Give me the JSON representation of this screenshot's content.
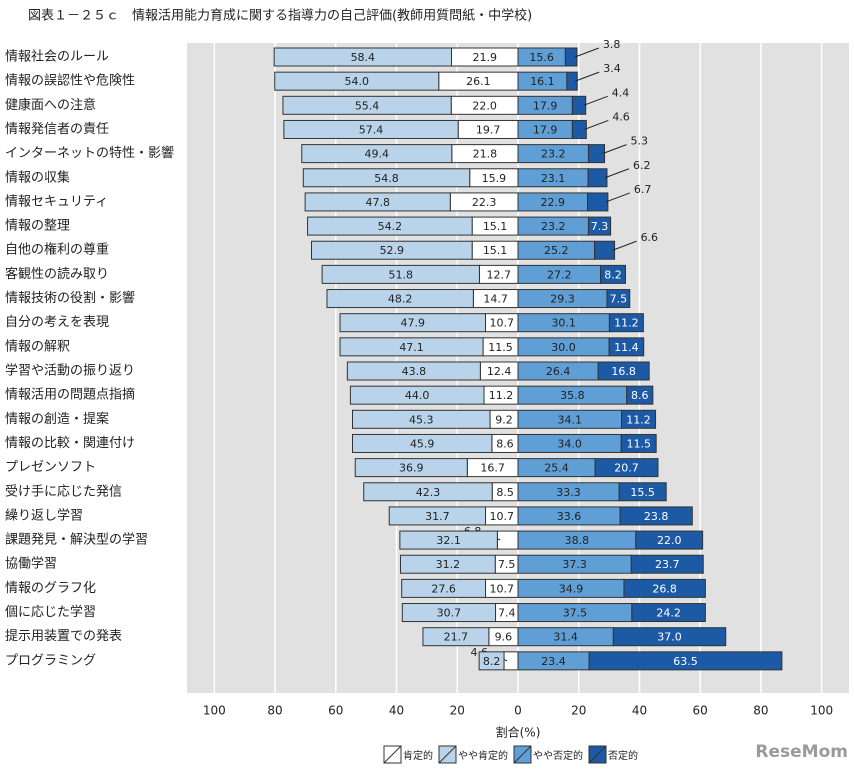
{
  "chart_data": {
    "type": "diverging-stacked-bar",
    "title": "図表１－２５ｃ　情報活用能力育成に関する指導力の自己評価(教師用質問紙・中学校)",
    "x_label": "割合(%)",
    "watermark": "ReseMom",
    "categories": [
      "情報社会のルール",
      "情報の誤認性や危険性",
      "健康面への注意",
      "情報発信者の責任",
      "インターネットの特性・影響",
      "情報の収集",
      "情報セキュリティ",
      "情報の整理",
      "自他の権利の尊重",
      "客観性の読み取り",
      "情報技術の役割・影響",
      "自分の考えを表現",
      "情報の解釈",
      "学習や活動の振り返り",
      "情報活用の問題点指摘",
      "情報の創造・提案",
      "情報の比較・関連付け",
      "プレゼンソフト",
      "受け手に応じた発信",
      "繰り返し学習",
      "課題発見・解決型の学習",
      "協働学習",
      "情報のグラフ化",
      "個に応じた学習",
      "提示用装置での発表",
      "プログラミング"
    ],
    "series": [
      {
        "name": "肯定的",
        "color": "#ffffff",
        "side": "left",
        "values": [
          21.9,
          26.1,
          22.0,
          19.7,
          21.8,
          15.9,
          22.3,
          15.1,
          15.1,
          12.7,
          14.7,
          10.7,
          11.5,
          12.4,
          11.2,
          9.2,
          8.6,
          16.7,
          8.5,
          10.7,
          6.8,
          7.5,
          10.7,
          7.4,
          9.6,
          4.6
        ],
        "value_labels": [
          "21.9",
          "26.1",
          "22.0",
          "19.7",
          "21.8",
          "15.9",
          "22.3",
          "15.1",
          "15.1",
          "12.7",
          "14.7",
          "10.7",
          "11.5",
          "12.4",
          "11.2",
          "9.2",
          "8.6",
          "16.7",
          "8.5",
          "10.7",
          "6.8",
          "7.5",
          "10.7",
          "7.4",
          "9.6",
          "4.6"
        ]
      },
      {
        "name": "やや肯定的",
        "color": "#b9d4ea",
        "side": "left",
        "values": [
          58.4,
          54.0,
          55.4,
          57.4,
          49.4,
          54.8,
          47.8,
          54.2,
          52.9,
          51.8,
          48.2,
          47.9,
          47.1,
          43.8,
          44.0,
          45.3,
          45.9,
          36.9,
          42.3,
          31.7,
          32.1,
          31.2,
          27.6,
          30.7,
          21.7,
          8.2
        ],
        "value_labels": [
          "58.4",
          "54.0",
          "55.4",
          "57.4",
          "49.4",
          "54.8",
          "47.8",
          "54.2",
          "52.9",
          "51.8",
          "48.2",
          "47.9",
          "47.1",
          "43.8",
          "44.0",
          "45.3",
          "45.9",
          "36.9",
          "42.3",
          "31.7",
          "32.1",
          "31.2",
          "27.6",
          "30.7",
          "21.7",
          "8.2"
        ]
      },
      {
        "name": "やや否定的",
        "color": "#5f9fd6",
        "side": "right",
        "values": [
          15.6,
          16.1,
          17.9,
          17.9,
          23.2,
          23.1,
          22.9,
          23.2,
          25.2,
          27.2,
          29.3,
          30.1,
          30.0,
          26.4,
          35.8,
          34.1,
          34.0,
          25.4,
          33.3,
          33.6,
          38.8,
          37.3,
          34.9,
          37.5,
          31.4,
          23.4
        ],
        "value_labels": [
          "15.6",
          "16.1",
          "17.9",
          "17.9",
          "23.2",
          "23.1",
          "22.9",
          "23.2",
          "25.2",
          "27.2",
          "29.3",
          "30.1",
          "30.0",
          "26.4",
          "35.8",
          "34.1",
          "34.0",
          "25.4",
          "33.3",
          "33.6",
          "38.8",
          "37.3",
          "34.9",
          "37.5",
          "31.4",
          "23.4"
        ]
      },
      {
        "name": "否定的",
        "color": "#1d5aa6",
        "side": "right",
        "values": [
          3.8,
          3.4,
          4.4,
          4.6,
          5.3,
          6.2,
          6.7,
          7.3,
          6.6,
          8.2,
          7.5,
          11.2,
          11.4,
          16.8,
          8.6,
          11.2,
          11.5,
          20.7,
          15.5,
          23.8,
          22.0,
          23.7,
          26.8,
          24.2,
          37.0,
          63.5
        ],
        "value_labels": [
          "3.8",
          "3.4",
          "4.4",
          "4.6",
          "5.3",
          "6.2",
          "6.7",
          "7.3",
          "6.6",
          "8.2",
          "7.5",
          "11.2",
          "11.4",
          "16.8",
          "8.6",
          "11.2",
          "11.5",
          "20.7",
          "15.5",
          "23.8",
          "22.0",
          "23.7",
          "26.8",
          "24.2",
          "37.0",
          "63.5"
        ]
      }
    ],
    "xlim": [
      -109,
      109
    ],
    "xticks": [
      {
        "value": -100,
        "label": "100"
      },
      {
        "value": -80,
        "label": "80"
      },
      {
        "value": -60,
        "label": "60"
      },
      {
        "value": -40,
        "label": "40"
      },
      {
        "value": -20,
        "label": "20"
      },
      0,
      20,
      40,
      60,
      80,
      100
    ],
    "grid": true,
    "legend": "bottom"
  }
}
